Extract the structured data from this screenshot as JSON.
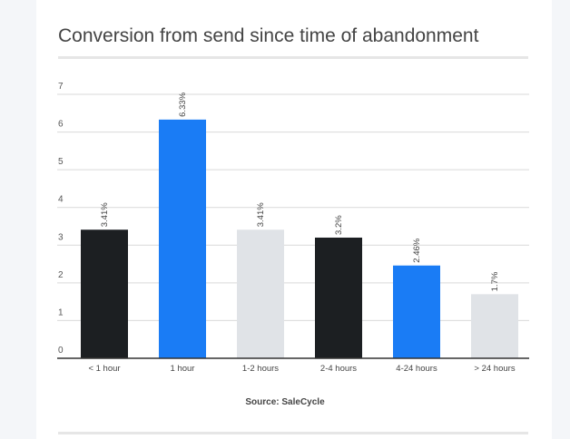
{
  "chart_data": {
    "type": "bar",
    "title": "Conversion from send since time of abandonment",
    "categories": [
      "< 1 hour",
      "1 hour",
      "1-2 hours",
      "2-4 hours",
      "4-24 hours",
      "> 24 hours"
    ],
    "values": [
      3.41,
      6.33,
      3.41,
      3.2,
      2.46,
      1.7
    ],
    "data_labels": [
      "3.41%",
      "6.33%",
      "3.41%",
      "3.2%",
      "2.46%",
      "1.7%"
    ],
    "bar_colors": [
      "#1c1f22",
      "#1a7cf5",
      "#e0e3e7",
      "#1c1f22",
      "#1a7cf5",
      "#e0e3e7"
    ],
    "xlabel": "",
    "ylabel": "",
    "ylim": [
      0,
      7
    ],
    "yticks": [
      0,
      1,
      2,
      3,
      4,
      5,
      6,
      7
    ],
    "grid": true,
    "source": "Source: SaleCycle"
  }
}
